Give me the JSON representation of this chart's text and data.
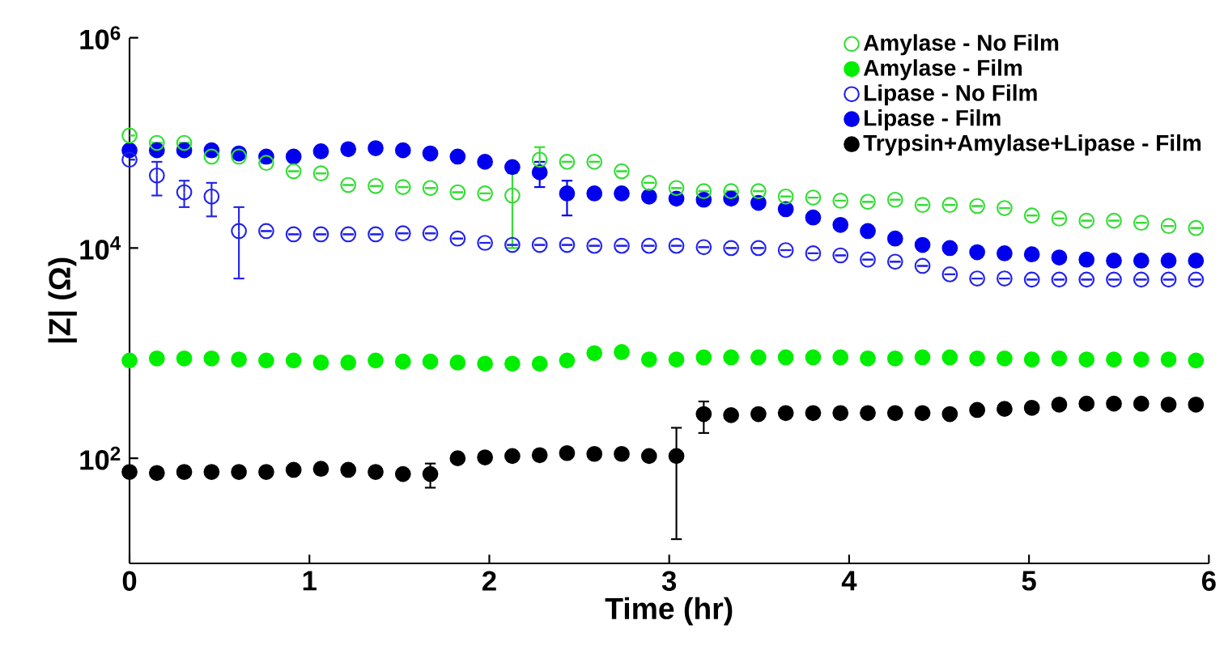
{
  "chart_data": {
    "type": "scatter",
    "xlabel": "Time (hr)",
    "ylabel": "|Z| (Ω)",
    "log": "y",
    "grid": false,
    "legend": "top right",
    "x": [
      0,
      0.152,
      0.304,
      0.456,
      0.608,
      0.76,
      0.912,
      1.064,
      1.216,
      1.368,
      1.52,
      1.672,
      1.824,
      1.976,
      2.128,
      2.28,
      2.432,
      2.584,
      2.736,
      2.888,
      3.04,
      3.192,
      3.344,
      3.496,
      3.648,
      3.8,
      3.952,
      4.104,
      4.256,
      4.408,
      4.56,
      4.712,
      4.864,
      5.016,
      5.168,
      5.32,
      5.472,
      5.624,
      5.776,
      5.928
    ],
    "xlim": [
      0,
      6
    ],
    "xticks": [
      0,
      1,
      2,
      3,
      4,
      5,
      6
    ],
    "ylim": [
      10,
      1000000
    ],
    "yticks": [
      {
        "value": 100,
        "label": "10$^{2}$"
      },
      {
        "value": 10000,
        "label": "10$^{4}$"
      },
      {
        "value": 1000000,
        "label": "10$^{6}$"
      }
    ],
    "series": [
      {
        "name": "Amylase - No Film",
        "color": "#33dd33",
        "marker": "open circle",
        "values": [
          117500,
          100000,
          100000,
          74100,
          74100,
          64600,
          53700,
          51300,
          39800,
          38900,
          38000,
          37200,
          33900,
          33100,
          31600,
          69200,
          66100,
          66100,
          53700,
          41700,
          37200,
          34700,
          34700,
          34700,
          30900,
          30200,
          28200,
          27500,
          28800,
          25700,
          25700,
          25100,
          24000,
          20400,
          19100,
          18200,
          18200,
          17400,
          16200,
          15500
        ],
        "errors": [
          null,
          null,
          null,
          null,
          null,
          null,
          null,
          null,
          null,
          null,
          null,
          null,
          null,
          null,
          [
            10000,
            51300
          ],
          [
            58900,
            91200
          ],
          null,
          null,
          null,
          null,
          null,
          null,
          null,
          null,
          null,
          null,
          null,
          null,
          null,
          null,
          null,
          null,
          null,
          null,
          null,
          null,
          null,
          null,
          null,
          null
        ]
      },
      {
        "name": "Amylase - Film",
        "color": "#00ee00",
        "marker": "circle",
        "values": [
          851,
          891,
          891,
          891,
          871,
          851,
          851,
          813,
          813,
          851,
          832,
          832,
          813,
          794,
          794,
          794,
          851,
          1000,
          1023,
          871,
          871,
          912,
          912,
          912,
          912,
          912,
          912,
          891,
          891,
          912,
          912,
          891,
          891,
          871,
          891,
          871,
          871,
          871,
          871,
          851
        ]
      },
      {
        "name": "Lipase - No Film",
        "color": "#2222ee",
        "marker": "open circle",
        "values": [
          69200,
          49000,
          33900,
          30900,
          14500,
          14500,
          13500,
          13500,
          13500,
          13500,
          13800,
          13800,
          12300,
          11200,
          10700,
          10700,
          10700,
          10500,
          10500,
          10500,
          10500,
          10200,
          10000,
          10000,
          9550,
          8910,
          8510,
          7760,
          7410,
          6760,
          5620,
          5130,
          5130,
          5010,
          5010,
          5010,
          5010,
          5010,
          5010,
          5010
        ],
        "errors": [
          null,
          [
            31600,
            66100
          ],
          [
            24500,
            43700
          ],
          [
            20000,
            41700
          ],
          [
            5130,
            24500
          ],
          null,
          null,
          null,
          null,
          null,
          null,
          null,
          null,
          null,
          null,
          null,
          null,
          null,
          null,
          null,
          null,
          null,
          null,
          null,
          null,
          null,
          null,
          null,
          null,
          null,
          null,
          null,
          null,
          null,
          null,
          null,
          null,
          null,
          null,
          null
        ]
      },
      {
        "name": "Lipase - Film",
        "color": "#0000ee",
        "marker": "circle",
        "values": [
          85100,
          85100,
          85100,
          85100,
          79400,
          74100,
          74100,
          83200,
          87100,
          89100,
          85100,
          79400,
          74100,
          66100,
          58900,
          52500,
          33100,
          33100,
          33100,
          30900,
          29500,
          28800,
          29500,
          26900,
          23400,
          19500,
          16600,
          14500,
          12300,
          10700,
          10000,
          9120,
          8910,
          8710,
          8130,
          7760,
          7590,
          7590,
          7590,
          7590
        ],
        "errors": [
          null,
          null,
          null,
          null,
          null,
          null,
          null,
          null,
          null,
          null,
          null,
          null,
          null,
          null,
          null,
          [
            38000,
            66100
          ],
          [
            20400,
            43700
          ],
          null,
          null,
          null,
          null,
          null,
          null,
          null,
          null,
          null,
          null,
          null,
          null,
          null,
          null,
          null,
          null,
          null,
          null,
          null,
          null,
          null,
          null,
          null
        ]
      },
      {
        "name": "Trypsin+Amylase+Lipase - Film",
        "color": "#000000",
        "marker": "circle",
        "values": [
          74.1,
          72.4,
          74.1,
          74.1,
          74.1,
          74.1,
          77.6,
          79.4,
          77.6,
          74.1,
          70.8,
          70.8,
          100,
          102,
          105,
          107,
          112,
          110,
          110,
          105,
          105,
          263,
          257,
          263,
          269,
          269,
          269,
          269,
          269,
          269,
          263,
          288,
          295,
          302,
          324,
          331,
          331,
          331,
          324,
          324
        ],
        "errors": [
          null,
          null,
          null,
          null,
          null,
          null,
          null,
          null,
          null,
          null,
          null,
          [
            52.5,
            89.1
          ],
          null,
          null,
          null,
          null,
          null,
          null,
          null,
          null,
          [
            17.0,
            195
          ],
          [
            174,
            347
          ],
          null,
          null,
          null,
          null,
          null,
          null,
          null,
          null,
          null,
          null,
          null,
          null,
          null,
          null,
          null,
          null,
          null,
          null
        ]
      }
    ]
  }
}
